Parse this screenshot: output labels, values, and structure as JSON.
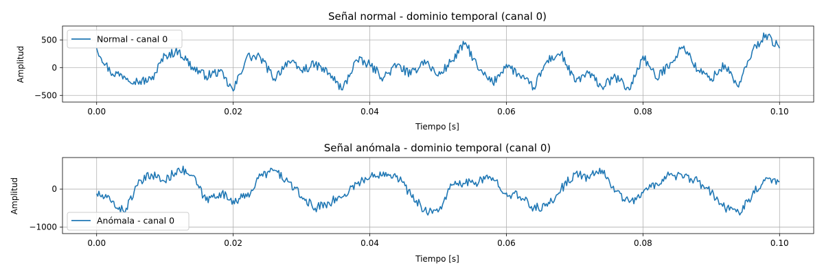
{
  "chart_data": [
    {
      "type": "line",
      "title": "Señal normal - dominio temporal (canal 0)",
      "xlabel": "Tiempo [s]",
      "ylabel": "Amplitud",
      "xlim": [
        -0.005,
        0.105
      ],
      "ylim": [
        -620,
        750
      ],
      "xticks": [
        0.0,
        0.02,
        0.04,
        0.06,
        0.08,
        0.1
      ],
      "xtick_labels": [
        "0.00",
        "0.02",
        "0.04",
        "0.06",
        "0.08",
        "0.10"
      ],
      "yticks": [
        -500,
        0,
        500
      ],
      "ytick_labels": [
        "−500",
        "0",
        "500"
      ],
      "grid": true,
      "legend_position": "upper-left",
      "series": [
        {
          "name": "Normal - canal 0",
          "color": "#1f77b4",
          "x": [
            0.0,
            0.002,
            0.004,
            0.006,
            0.008,
            0.01,
            0.012,
            0.014,
            0.016,
            0.018,
            0.02,
            0.022,
            0.024,
            0.026,
            0.028,
            0.03,
            0.032,
            0.034,
            0.036,
            0.038,
            0.04,
            0.042,
            0.044,
            0.046,
            0.048,
            0.05,
            0.052,
            0.054,
            0.056,
            0.058,
            0.06,
            0.062,
            0.064,
            0.066,
            0.068,
            0.07,
            0.072,
            0.074,
            0.076,
            0.078,
            0.08,
            0.082,
            0.084,
            0.086,
            0.088,
            0.09,
            0.092,
            0.094,
            0.096,
            0.098,
            0.1
          ],
          "y": [
            350,
            -80,
            -150,
            -250,
            -220,
            220,
            300,
            10,
            -150,
            -70,
            -420,
            200,
            180,
            -200,
            120,
            -50,
            60,
            -100,
            -400,
            140,
            50,
            -180,
            50,
            -130,
            140,
            -150,
            120,
            450,
            -50,
            -280,
            60,
            -150,
            -360,
            130,
            260,
            -250,
            -100,
            -350,
            -170,
            -400,
            210,
            -200,
            90,
            390,
            -50,
            -200,
            50,
            -350,
            300,
            600,
            350
          ]
        }
      ]
    },
    {
      "type": "line",
      "title": "Señal anómala - dominio temporal (canal 0)",
      "xlabel": "Tiempo [s]",
      "ylabel": "Amplitud",
      "xlim": [
        -0.005,
        0.105
      ],
      "ylim": [
        -1170,
        830
      ],
      "xticks": [
        0.0,
        0.02,
        0.04,
        0.06,
        0.08,
        0.1
      ],
      "xtick_labels": [
        "0.00",
        "0.02",
        "0.04",
        "0.06",
        "0.08",
        "0.10"
      ],
      "yticks": [
        -1000,
        0
      ],
      "ytick_labels": [
        "−1000",
        "0"
      ],
      "grid": true,
      "legend_position": "lower-left",
      "series": [
        {
          "name": "Anómala - canal 0",
          "color": "#1f77b4",
          "x": [
            0.0,
            0.002,
            0.004,
            0.006,
            0.008,
            0.01,
            0.012,
            0.014,
            0.016,
            0.018,
            0.02,
            0.022,
            0.024,
            0.026,
            0.028,
            0.03,
            0.032,
            0.034,
            0.036,
            0.038,
            0.04,
            0.042,
            0.044,
            0.046,
            0.048,
            0.05,
            0.052,
            0.054,
            0.056,
            0.058,
            0.06,
            0.062,
            0.064,
            0.066,
            0.068,
            0.07,
            0.072,
            0.074,
            0.076,
            0.078,
            0.08,
            0.082,
            0.084,
            0.086,
            0.088,
            0.09,
            0.092,
            0.094,
            0.096,
            0.098,
            0.1
          ],
          "y": [
            -120,
            -300,
            -600,
            100,
            400,
            200,
            550,
            350,
            -300,
            -100,
            -300,
            -200,
            350,
            500,
            200,
            -200,
            -500,
            -350,
            -200,
            150,
            300,
            450,
            350,
            -150,
            -550,
            -600,
            100,
            150,
            200,
            300,
            -100,
            -200,
            -500,
            -450,
            0,
            400,
            300,
            500,
            -50,
            -350,
            -100,
            150,
            400,
            300,
            200,
            -100,
            -500,
            -600,
            -150,
            300,
            200
          ]
        }
      ]
    }
  ]
}
